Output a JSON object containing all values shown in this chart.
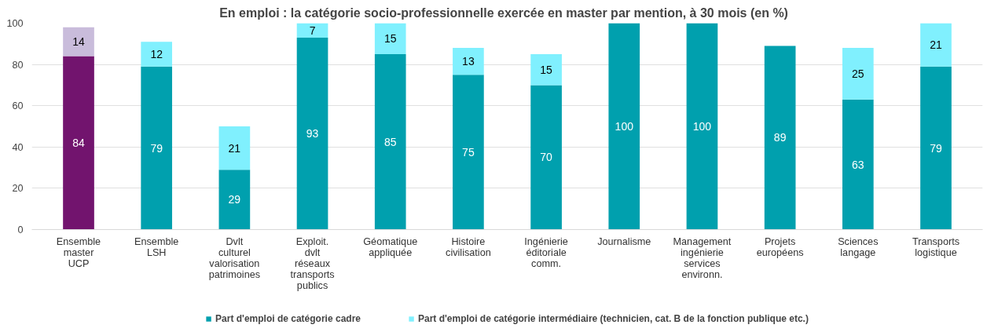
{
  "chart_data": {
    "type": "bar",
    "stacked": true,
    "title": "En emploi  : la catégorie socio-professionnelle  exercée en master par mention, à 30 mois (en %)",
    "categories": [
      "Ensemble\nmaster\nUCP",
      "Ensemble\nLSH",
      "Dvlt\nculturel\nvalorisation\npatrimoines",
      "Exploit.\ndvlt\nréseaux\ntransports\npublics",
      "Géomatique\nappliquée",
      "Histoire\ncivilisation",
      "Ingénierie\néditoriale\ncomm.",
      "Journalisme",
      "Management\ningénierie\nservices\nenvironn.",
      "Projets\neuropéens",
      "Sciences\nlangage",
      "Transports\nlogistique"
    ],
    "series": [
      {
        "name": "Part d'emploi de catégorie cadre",
        "color": "#00a0ae",
        "colors": [
          "#72146e",
          "#00a0ae",
          "#00a0ae",
          "#00a0ae",
          "#00a0ae",
          "#00a0ae",
          "#00a0ae",
          "#00a0ae",
          "#00a0ae",
          "#00a0ae",
          "#00a0ae",
          "#00a0ae"
        ],
        "values": [
          84,
          79,
          29,
          93,
          85,
          75,
          70,
          100,
          100,
          89,
          63,
          79
        ]
      },
      {
        "name": "Part d'emploi de catégorie intermédiaire (technicien, cat. B de la fonction publique etc.)",
        "color": "#80f0fe",
        "colors": [
          "#c9bcdb",
          "#80f0fe",
          "#80f0fe",
          "#80f0fe",
          "#80f0fe",
          "#80f0fe",
          "#80f0fe",
          "#80f0fe",
          "#80f0fe",
          "#80f0fe",
          "#80f0fe",
          "#80f0fe"
        ],
        "values": [
          14,
          12,
          21,
          7,
          15,
          13,
          15,
          null,
          null,
          null,
          25,
          21
        ]
      }
    ],
    "ylim": [
      0,
      100
    ],
    "yticks": [
      0,
      20,
      40,
      60,
      80,
      100
    ],
    "grid": "y",
    "legend": "bottom",
    "data_labels": true
  }
}
